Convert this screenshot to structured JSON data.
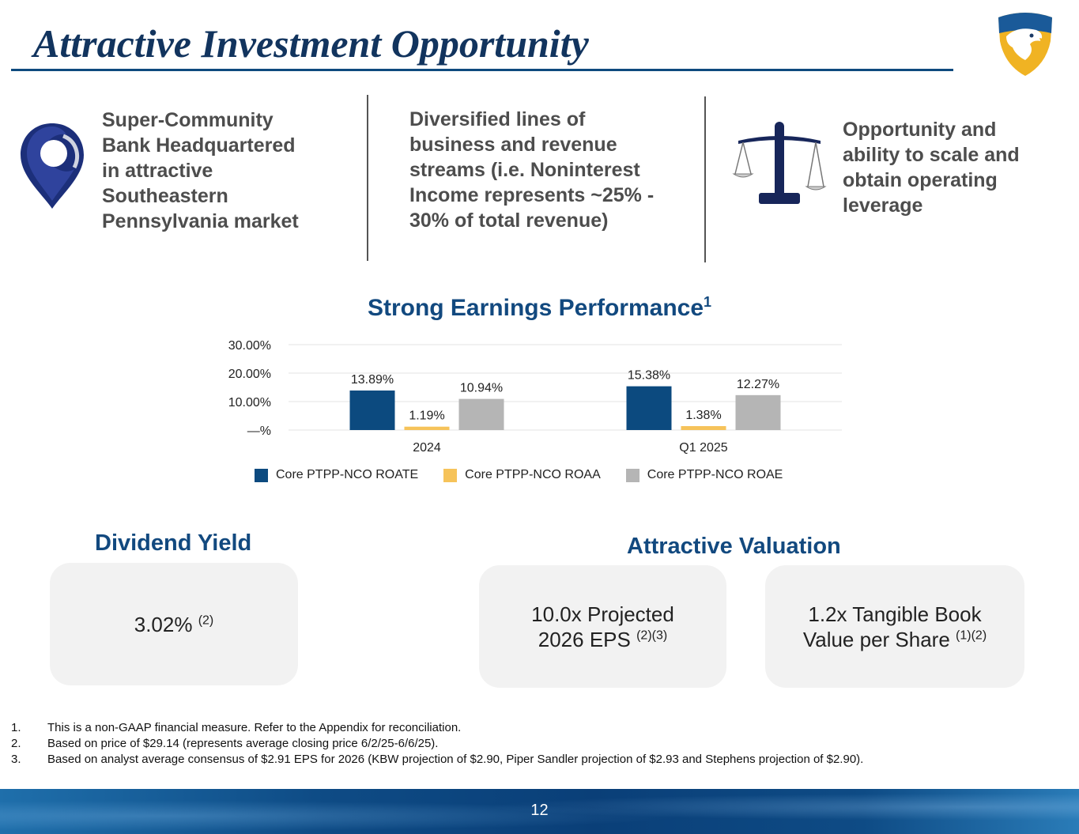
{
  "header": {
    "title": "Attractive Investment Opportunity",
    "logo_icon": "eagle-shield-icon"
  },
  "features": [
    {
      "icon": "map-pin-icon",
      "text_lines": [
        "Super-Community",
        "Bank Headquartered",
        "in attractive",
        "Southeastern",
        "Pennsylvania market"
      ]
    },
    {
      "icon": null,
      "text_lines": [
        "Diversified lines of",
        "business and revenue",
        "streams (i.e. Noninterest",
        "Income represents ~25% -",
        "30% of total revenue)"
      ]
    },
    {
      "icon": "balance-scale-icon",
      "text_lines": [
        "Opportunity and",
        "ability to scale and",
        "obtain operating",
        "leverage"
      ]
    }
  ],
  "chart": {
    "title": "Strong Earnings Performance",
    "title_sup": "1"
  },
  "chart_data": {
    "type": "bar",
    "title": "Strong Earnings Performance",
    "categories": [
      "2024",
      "Q1 2025"
    ],
    "series": [
      {
        "name": "Core PTPP-NCO ROATE",
        "values": [
          13.89,
          15.38
        ],
        "labels": [
          "13.89%",
          "15.38%"
        ],
        "color": "#0c4a7f"
      },
      {
        "name": "Core PTPP-NCO ROAA",
        "values": [
          1.19,
          1.38
        ],
        "labels": [
          "1.19%",
          "1.38%"
        ],
        "color": "#f6c35a"
      },
      {
        "name": "Core PTPP-NCO ROAE",
        "values": [
          10.94,
          12.27
        ],
        "labels": [
          "10.94%",
          "12.27%"
        ],
        "color": "#b5b5b5"
      }
    ],
    "yticks": [
      0,
      10,
      20,
      30
    ],
    "ytick_labels": [
      "—%",
      "10.00%",
      "20.00%",
      "30.00%"
    ],
    "ylim": [
      0,
      30
    ],
    "grid": true,
    "legend": "bottom"
  },
  "dividend": {
    "heading": "Dividend Yield",
    "value": "3.02%",
    "sup": "(2)"
  },
  "valuation": {
    "heading": "Attractive Valuation",
    "boxes": [
      {
        "line1": "10.0x Projected",
        "line2": "2026 EPS",
        "sup": "(2)(3)"
      },
      {
        "line1": "1.2x Tangible Book",
        "line2": "Value per Share",
        "sup": "(1)(2)"
      }
    ]
  },
  "footnotes": [
    {
      "num": "1.",
      "text": "This is a non-GAAP financial measure. Refer to the Appendix for reconciliation."
    },
    {
      "num": "2.",
      "text": "Based on price of $29.14 (represents average closing price 6/2/25-6/6/25)."
    },
    {
      "num": "3.",
      "text": "Based on analyst average consensus of $2.91 EPS for 2026 (KBW projection of $2.90, Piper Sandler projection of $2.93 and Stephens projection of $2.90)."
    }
  ],
  "footer": {
    "page_number": "12"
  }
}
